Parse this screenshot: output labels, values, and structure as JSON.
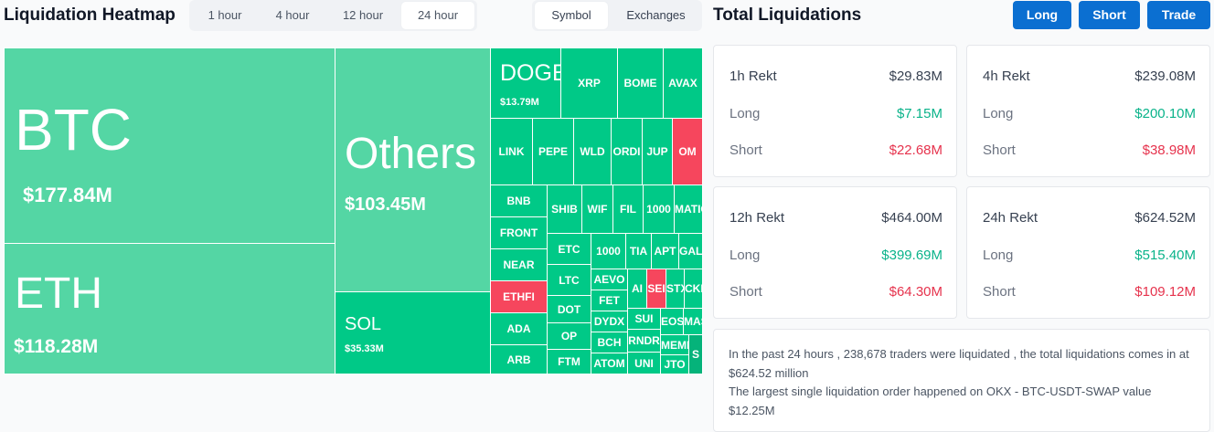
{
  "heatmap": {
    "title": "Liquidation Heatmap",
    "time_tabs": [
      "1 hour",
      "4 hour",
      "12 hour",
      "24 hour"
    ],
    "active_time_tab": "24 hour",
    "mode_tabs": [
      "Symbol",
      "Exchanges"
    ],
    "active_mode_tab": "Symbol",
    "tiles": {
      "btc": {
        "symbol": "BTC",
        "value": "$177.84M"
      },
      "eth": {
        "symbol": "ETH",
        "value": "$118.28M"
      },
      "others": {
        "symbol": "Others",
        "value": "$103.45M"
      },
      "sol": {
        "symbol": "SOL",
        "value": "$35.33M"
      },
      "doge": {
        "symbol": "DOGE",
        "value": "$13.79M"
      },
      "xrp": "XRP",
      "bome": "BOME",
      "avax": "AVAX",
      "link": "LINK",
      "pepe": "PEPE",
      "wld": "WLD",
      "ordi": "ORDI",
      "jup": "JUP",
      "om": "OM",
      "bnb": "BNB",
      "shib": "SHIB",
      "wif": "WIF",
      "fil": "FIL",
      "1000x": "1000",
      "matic": "MATIC",
      "front": "FRONT",
      "etc": "ETC",
      "1000b": "1000",
      "tia": "TIA",
      "apt": "APT",
      "gala": "GALA",
      "near": "NEAR",
      "ltc": "LTC",
      "aevo": "AEVO",
      "ai": "AI",
      "sei": "SEI",
      "stx": "STX",
      "ckb": "CKB",
      "ethfi": "ETHFI",
      "dot": "DOT",
      "fet": "FET",
      "ada": "ADA",
      "op": "OP",
      "dydx": "DYDX",
      "sui": "SUI",
      "eos": "EOS",
      "mask": "MASK",
      "arb": "ARB",
      "ftm": "FTM",
      "bch": "BCH",
      "rndr": "RNDR",
      "meme": "MEME",
      "s": "S",
      "atom": "ATOM",
      "uni": "UNI",
      "jto": "JTO"
    }
  },
  "total": {
    "title": "Total Liquidations",
    "buttons": {
      "long": "Long",
      "short": "Short",
      "trade": "Trade"
    },
    "cards": [
      {
        "label": "1h Rekt",
        "total": "$29.83M",
        "long_label": "Long",
        "long": "$7.15M",
        "short_label": "Short",
        "short": "$22.68M"
      },
      {
        "label": "4h Rekt",
        "total": "$239.08M",
        "long_label": "Long",
        "long": "$200.10M",
        "short_label": "Short",
        "short": "$38.98M"
      },
      {
        "label": "12h Rekt",
        "total": "$464.00M",
        "long_label": "Long",
        "long": "$399.69M",
        "short_label": "Short",
        "short": "$64.30M"
      },
      {
        "label": "24h Rekt",
        "total": "$624.52M",
        "long_label": "Long",
        "long": "$515.40M",
        "short_label": "Short",
        "short": "$109.12M"
      }
    ],
    "summary": {
      "line1": "In the past 24 hours , 238,678 traders were liquidated , the total liquidations comes in at $624.52 million",
      "line2": "The largest single liquidation order happened on OKX - BTC-USDT-SWAP value $12.25M"
    }
  },
  "colors": {
    "up": "#00c987",
    "big_up": "#54d6a4",
    "down": "#f6465d",
    "button": "#0b6fd1",
    "long_text": "#0ab38a",
    "short_text": "#e6334d"
  }
}
